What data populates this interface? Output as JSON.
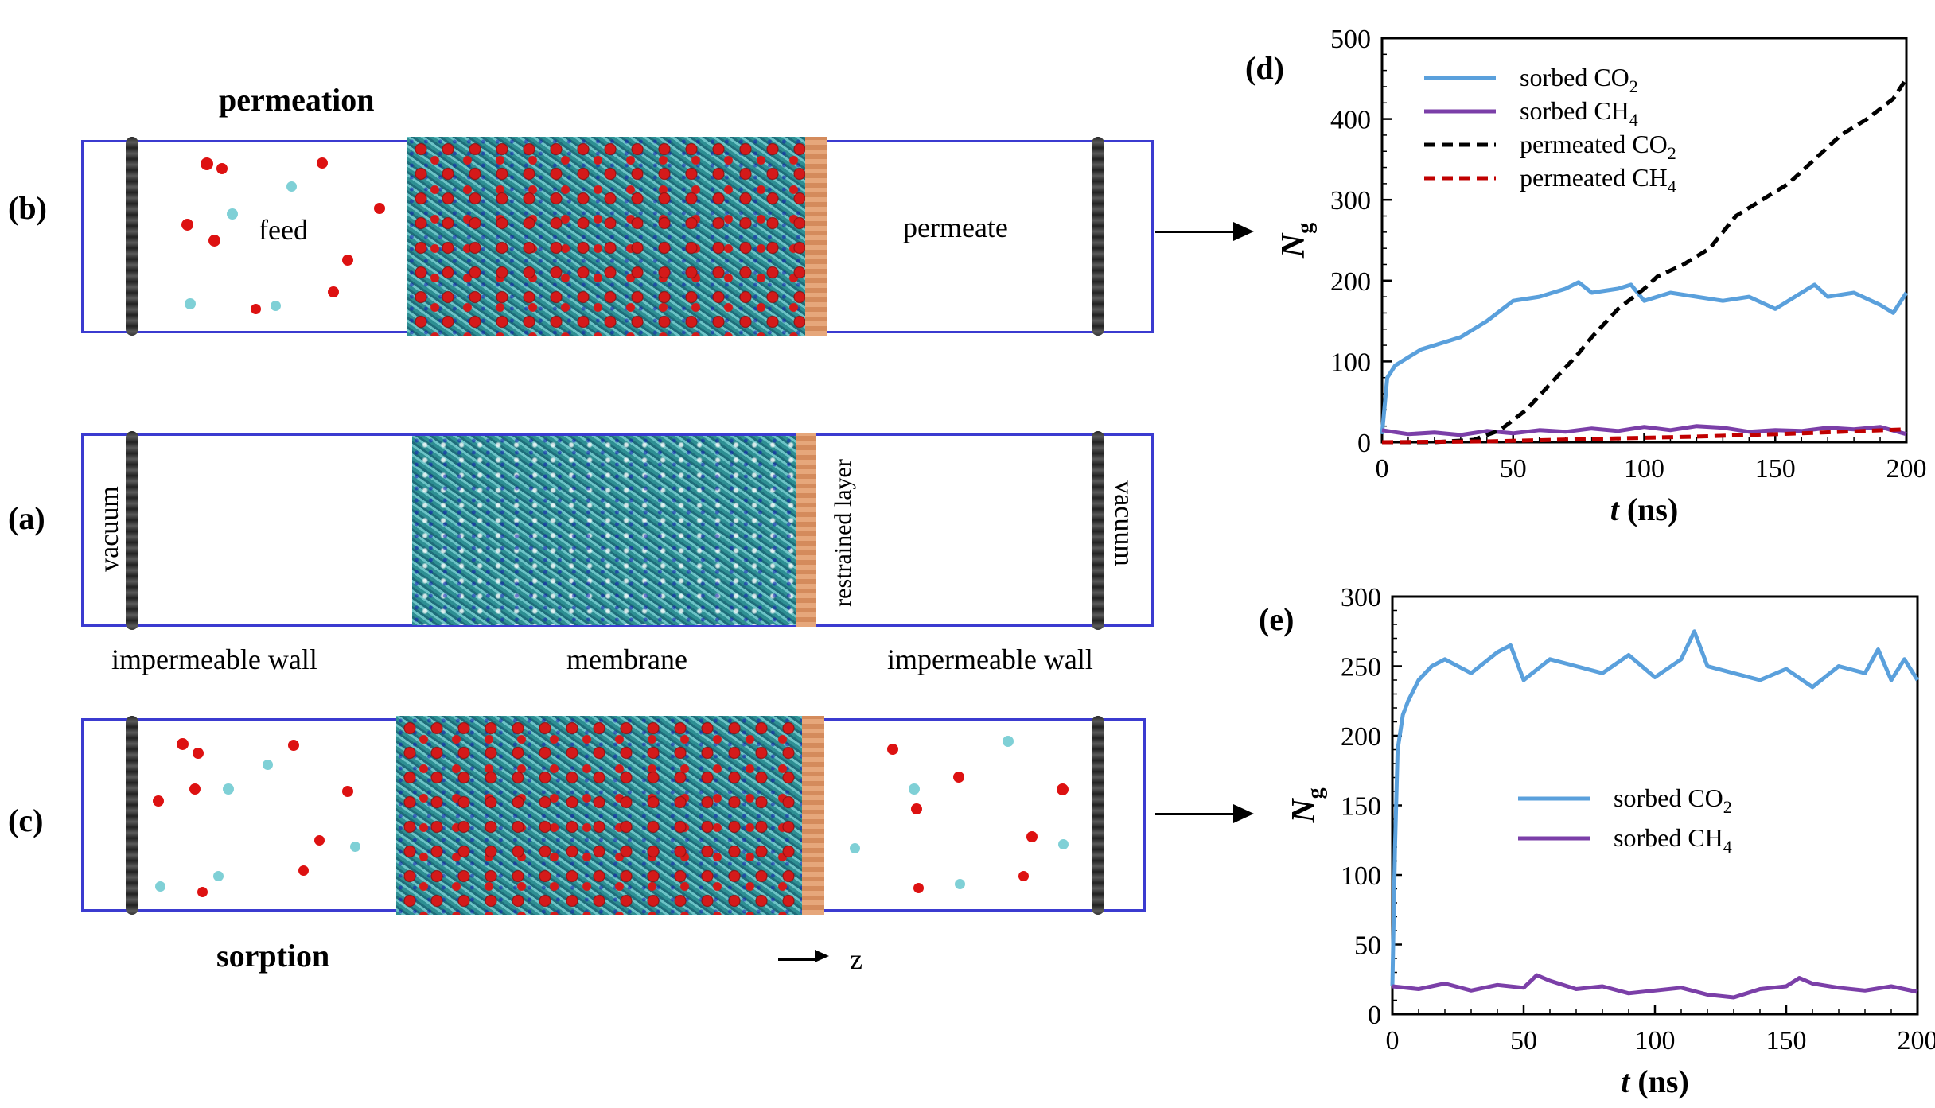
{
  "left": {
    "permeation_title": "permeation",
    "sorption_title": "sorption",
    "panel_b": "(b)",
    "panel_a": "(a)",
    "panel_c": "(c)",
    "feed": "feed",
    "permeate": "permeate",
    "vacuum_left": "vacuum",
    "vacuum_right": "vacuum",
    "restrained_layer": "restrained layer",
    "impermeable_wall_left": "impermeable wall",
    "membrane": "membrane",
    "impermeable_wall_right": "impermeable wall",
    "z_axis": "z"
  },
  "chart_data": [
    {
      "panel": "(d)",
      "type": "line",
      "xlabel": "t (ns)",
      "ylabel": "Ng",
      "xlim": [
        0,
        200
      ],
      "ylim": [
        0,
        500
      ],
      "xticks": [
        "0",
        "50",
        "100",
        "150",
        "200"
      ],
      "yticks": [
        "0",
        "100",
        "200",
        "300",
        "400",
        "500"
      ],
      "legend": [
        "sorbed CO2",
        "sorbed CH4",
        "permeated CO2",
        "permeated CH4"
      ],
      "legend_display": [
        {
          "prefix": "sorbed CO",
          "sub": "2"
        },
        {
          "prefix": "sorbed CH",
          "sub": "4"
        },
        {
          "prefix": "permeated CO",
          "sub": "2"
        },
        {
          "prefix": "permeated CH",
          "sub": "4"
        }
      ],
      "series": [
        {
          "name": "sorbed CO2",
          "color": "#5aa0dc",
          "dash": false,
          "x": [
            0,
            2,
            5,
            10,
            15,
            20,
            25,
            30,
            40,
            50,
            60,
            70,
            75,
            80,
            90,
            95,
            100,
            110,
            120,
            130,
            140,
            150,
            160,
            165,
            170,
            180,
            190,
            195,
            200
          ],
          "y": [
            10,
            80,
            95,
            105,
            115,
            120,
            125,
            130,
            150,
            175,
            180,
            190,
            198,
            185,
            190,
            195,
            175,
            185,
            180,
            175,
            180,
            165,
            185,
            195,
            180,
            185,
            170,
            160,
            185
          ]
        },
        {
          "name": "sorbed CH4",
          "color": "#7b3fa8",
          "dash": false,
          "x": [
            0,
            10,
            20,
            30,
            40,
            50,
            60,
            70,
            80,
            90,
            100,
            110,
            120,
            130,
            140,
            150,
            160,
            170,
            180,
            190,
            200
          ],
          "y": [
            15,
            10,
            12,
            9,
            14,
            11,
            15,
            13,
            17,
            14,
            19,
            15,
            20,
            18,
            13,
            15,
            14,
            18,
            16,
            19,
            10
          ]
        },
        {
          "name": "permeated CO2",
          "color": "#000000",
          "dash": true,
          "x": [
            0,
            20,
            35,
            45,
            55,
            65,
            75,
            80,
            90,
            100,
            105,
            115,
            125,
            135,
            145,
            155,
            165,
            175,
            185,
            195,
            200
          ],
          "y": [
            0,
            0,
            3,
            15,
            40,
            75,
            110,
            130,
            165,
            190,
            205,
            220,
            240,
            280,
            300,
            320,
            350,
            380,
            400,
            425,
            450
          ]
        },
        {
          "name": "permeated CH4",
          "color": "#c00000",
          "dash": true,
          "x": [
            0,
            40,
            80,
            120,
            160,
            200
          ],
          "y": [
            0,
            1,
            4,
            7,
            11,
            16
          ]
        }
      ]
    },
    {
      "panel": "(e)",
      "type": "line",
      "xlabel": "t (ns)",
      "ylabel": "Ng",
      "xlim": [
        0,
        200
      ],
      "ylim": [
        0,
        300
      ],
      "xticks": [
        "0",
        "50",
        "100",
        "150",
        "200"
      ],
      "yticks": [
        "0",
        "50",
        "100",
        "150",
        "200",
        "250",
        "300"
      ],
      "legend": [
        "sorbed CO2",
        "sorbed CH4"
      ],
      "legend_display": [
        {
          "prefix": "sorbed CO",
          "sub": "2"
        },
        {
          "prefix": "sorbed CH",
          "sub": "4"
        }
      ],
      "series": [
        {
          "name": "sorbed CO2",
          "color": "#5aa0dc",
          "dash": false,
          "x": [
            0,
            1,
            2,
            4,
            6,
            10,
            15,
            20,
            30,
            40,
            45,
            50,
            60,
            70,
            80,
            90,
            100,
            110,
            115,
            120,
            130,
            140,
            150,
            160,
            170,
            180,
            185,
            190,
            195,
            200
          ],
          "y": [
            20,
            120,
            190,
            215,
            225,
            240,
            250,
            255,
            245,
            260,
            265,
            240,
            255,
            250,
            245,
            258,
            242,
            255,
            275,
            250,
            245,
            240,
            248,
            235,
            250,
            245,
            262,
            240,
            255,
            240
          ]
        },
        {
          "name": "sorbed CH4",
          "color": "#7b3fa8",
          "dash": false,
          "x": [
            0,
            10,
            20,
            30,
            40,
            50,
            55,
            60,
            70,
            80,
            90,
            100,
            110,
            120,
            130,
            140,
            150,
            155,
            160,
            170,
            180,
            190,
            200
          ],
          "y": [
            20,
            18,
            22,
            17,
            21,
            19,
            28,
            24,
            18,
            20,
            15,
            17,
            19,
            14,
            12,
            18,
            20,
            26,
            22,
            19,
            17,
            20,
            16
          ]
        }
      ]
    }
  ]
}
